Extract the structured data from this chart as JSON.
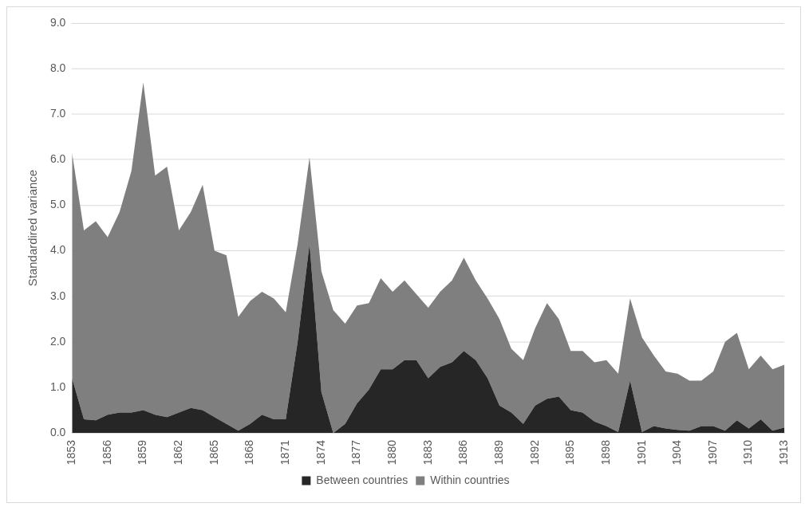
{
  "chart_data": {
    "type": "area",
    "stacked": true,
    "ylabel": "Standardired variance",
    "categories": [
      "1853",
      null,
      null,
      "1856",
      null,
      null,
      "1859",
      null,
      null,
      "1862",
      null,
      null,
      "1865",
      null,
      null,
      "1868",
      null,
      null,
      "1871",
      null,
      null,
      "1874",
      null,
      null,
      "1877",
      null,
      null,
      "1880",
      null,
      null,
      "1883",
      null,
      null,
      "1886",
      null,
      null,
      "1889",
      null,
      null,
      "1892",
      null,
      null,
      "1895",
      null,
      null,
      "1898",
      null,
      null,
      "1901",
      null,
      null,
      "1904",
      null,
      null,
      "1907",
      null,
      null,
      "1910",
      null,
      null,
      "1913"
    ],
    "series": [
      {
        "name": "Between countries",
        "color": "#262626",
        "values": [
          1.2,
          0.3,
          0.28,
          0.4,
          0.45,
          0.45,
          0.5,
          0.4,
          0.35,
          0.45,
          0.55,
          0.5,
          0.35,
          0.2,
          0.05,
          0.2,
          0.4,
          0.3,
          0.3,
          2.0,
          4.15,
          0.9,
          0.0,
          0.2,
          0.65,
          0.95,
          1.4,
          1.4,
          1.6,
          1.6,
          1.2,
          1.45,
          1.55,
          1.8,
          1.6,
          1.2,
          0.6,
          0.45,
          0.2,
          0.6,
          0.75,
          0.8,
          0.5,
          0.45,
          0.25,
          0.15,
          0.02,
          1.15,
          0.02,
          0.15,
          0.1,
          0.07,
          0.05,
          0.15,
          0.15,
          0.05,
          0.28,
          0.1,
          0.3,
          0.05,
          0.12
        ]
      },
      {
        "name": "Within countries",
        "color": "#7f7f7f",
        "values": [
          4.95,
          4.15,
          4.37,
          3.9,
          4.4,
          5.3,
          7.2,
          5.25,
          5.5,
          4.0,
          4.3,
          4.95,
          3.65,
          3.7,
          2.5,
          2.7,
          2.7,
          2.65,
          2.35,
          2.15,
          1.9,
          2.65,
          2.7,
          2.2,
          2.15,
          1.9,
          2.0,
          1.7,
          1.75,
          1.45,
          1.55,
          1.65,
          1.8,
          2.05,
          1.75,
          1.75,
          1.9,
          1.4,
          1.4,
          1.7,
          2.1,
          1.7,
          1.3,
          1.35,
          1.3,
          1.45,
          1.28,
          1.8,
          2.08,
          1.55,
          1.25,
          1.23,
          1.1,
          1.0,
          1.2,
          1.95,
          1.92,
          1.3,
          1.4,
          1.35,
          1.38
        ]
      }
    ],
    "ylim": [
      0,
      9
    ],
    "yticks": [
      {
        "value": 0,
        "label": "0.0"
      },
      {
        "value": 1,
        "label": "1.0"
      },
      {
        "value": 2,
        "label": "2.0"
      },
      {
        "value": 3,
        "label": "3.0"
      },
      {
        "value": 4,
        "label": "4.0"
      },
      {
        "value": 5,
        "label": "5.0"
      },
      {
        "value": 6,
        "label": "6.0"
      },
      {
        "value": 7,
        "label": "7.0"
      },
      {
        "value": 8,
        "label": "8.0"
      },
      {
        "value": 9,
        "label": "9.0"
      }
    ],
    "grid": "y",
    "legend": "bottom"
  }
}
